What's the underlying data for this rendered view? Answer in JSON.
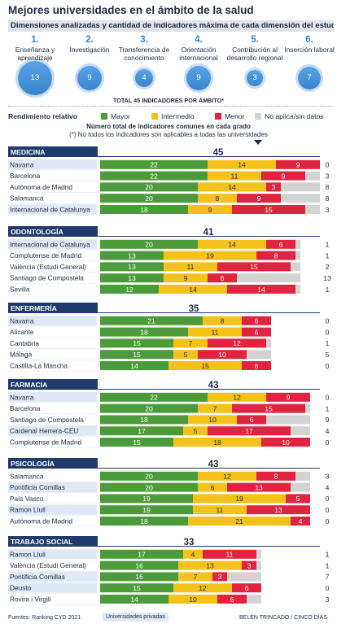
{
  "title": "Mejores universidades en el ámbito de la salud",
  "subtitle": "Dimensiones analizadas y cantidad de indicadores máxima de cada dimensión del estudio",
  "dimensions": [
    {
      "num": "1.",
      "label": "Enseñanza y aprendizaje",
      "count": "13"
    },
    {
      "num": "2.",
      "label": "Investigación",
      "count": "9"
    },
    {
      "num": "3.",
      "label": "Transferencia de conocimiento",
      "count": "4"
    },
    {
      "num": "4.",
      "label": "Orientación internacional",
      "count": "9"
    },
    {
      "num": "5.",
      "label": "Contribución al desarrollo regional",
      "count": "3"
    },
    {
      "num": "6.",
      "label": "Inserción laboral",
      "count": "7"
    }
  ],
  "total_label": "TOTAL 45 INDICADORES POR ÁMBITO*",
  "legend": {
    "title": "Rendimiento relativo",
    "items": [
      {
        "label": "Mayor",
        "color": "#4c9b3a"
      },
      {
        "label": "Intermedio",
        "color": "#f5c21b"
      },
      {
        "label": "Menor",
        "color": "#e0233f"
      },
      {
        "label": "No aplica/sin datos",
        "color": "#d3d3d3"
      }
    ]
  },
  "note_common": "Número total de indicadores comunes en cada grado",
  "note_asterisk": "(*) No todos los indicadores son aplicables a todas las universidades",
  "colors": {
    "mayor": "#4c9b3a",
    "intermedio": "#f5c21b",
    "menor": "#e0233f",
    "na": "#d3d3d3",
    "header": "#1f3b6b",
    "private_row": "#dfe9f5"
  },
  "chart_data": {
    "type": "bar",
    "stacked": true,
    "orientation": "horizontal",
    "series_names": [
      "Mayor",
      "Intermedio",
      "Menor",
      "No aplica/sin datos"
    ],
    "groups": [
      {
        "name": "MEDICINA",
        "total": 45,
        "rows": [
          {
            "university": "Navarra",
            "private": true,
            "values": [
              22,
              14,
              9,
              0
            ]
          },
          {
            "university": "Barcelona",
            "private": false,
            "values": [
              22,
              11,
              9,
              3
            ]
          },
          {
            "university": "Autónoma de Madrid",
            "private": false,
            "values": [
              20,
              14,
              3,
              8
            ]
          },
          {
            "university": "Salamanca",
            "private": false,
            "values": [
              20,
              8,
              9,
              8
            ]
          },
          {
            "university": "Internacional de Catalunya",
            "private": true,
            "values": [
              18,
              9,
              15,
              3
            ]
          }
        ]
      },
      {
        "name": "ODONTOLOGÍA",
        "total": 41,
        "rows": [
          {
            "university": "Internacional de Catalunya",
            "private": true,
            "values": [
              20,
              14,
              6,
              1
            ]
          },
          {
            "university": "Complutense de Madrid",
            "private": false,
            "values": [
              13,
              19,
              8,
              1
            ]
          },
          {
            "university": "València (Estudi General)",
            "private": false,
            "values": [
              13,
              11,
              15,
              2
            ]
          },
          {
            "university": "Santiago de Compostela",
            "private": false,
            "values": [
              13,
              9,
              6,
              13
            ]
          },
          {
            "university": "Sevilla",
            "private": false,
            "values": [
              12,
              14,
              14,
              1
            ]
          }
        ]
      },
      {
        "name": "ENFERMERÍA",
        "total": 35,
        "rows": [
          {
            "university": "Navarra",
            "private": true,
            "values": [
              21,
              8,
              6,
              0
            ]
          },
          {
            "university": "Alicante",
            "private": false,
            "values": [
              18,
              11,
              6,
              0
            ]
          },
          {
            "university": "Cantabria",
            "private": false,
            "values": [
              15,
              7,
              12,
              1
            ]
          },
          {
            "university": "Málaga",
            "private": false,
            "values": [
              15,
              5,
              10,
              5
            ]
          },
          {
            "university": "Castilla-La Mancha",
            "private": false,
            "values": [
              14,
              15,
              6,
              0
            ]
          }
        ]
      },
      {
        "name": "FARMACIA",
        "total": 43,
        "rows": [
          {
            "university": "Navarra",
            "private": true,
            "values": [
              22,
              12,
              9,
              0
            ]
          },
          {
            "university": "Barcelona",
            "private": false,
            "values": [
              20,
              7,
              15,
              1
            ]
          },
          {
            "university": "Santiago de Compostela",
            "private": false,
            "values": [
              18,
              10,
              6,
              9
            ]
          },
          {
            "university": "Cardenal Herrera-CEU",
            "private": true,
            "values": [
              17,
              5,
              17,
              4
            ]
          },
          {
            "university": "Complutense de Madrid",
            "private": false,
            "values": [
              15,
              18,
              10,
              0
            ]
          }
        ]
      },
      {
        "name": "PSICOLOGÍA",
        "total": 43,
        "rows": [
          {
            "university": "Salamanca",
            "private": false,
            "values": [
              20,
              12,
              8,
              3
            ]
          },
          {
            "university": "Pontificia Comillas",
            "private": true,
            "values": [
              20,
              6,
              13,
              4
            ]
          },
          {
            "university": "País Vasco",
            "private": false,
            "values": [
              19,
              19,
              5,
              0
            ]
          },
          {
            "university": "Ramon Llull",
            "private": true,
            "values": [
              19,
              11,
              13,
              0
            ]
          },
          {
            "university": "Autónoma de Madrid",
            "private": false,
            "values": [
              18,
              21,
              4,
              0
            ]
          }
        ]
      },
      {
        "name": "TRABAJO SOCIAL",
        "total": 33,
        "rows": [
          {
            "university": "Ramon Llull",
            "private": true,
            "values": [
              17,
              4,
              11,
              1
            ]
          },
          {
            "university": "València (Estudi General)",
            "private": false,
            "values": [
              16,
              13,
              3,
              1
            ]
          },
          {
            "university": "Pontificia Comillas",
            "private": true,
            "values": [
              16,
              7,
              3,
              7
            ]
          },
          {
            "university": "Deusto",
            "private": true,
            "values": [
              15,
              12,
              6,
              0
            ]
          },
          {
            "university": "Rovira i Virgili",
            "private": false,
            "values": [
              14,
              10,
              6,
              3
            ]
          }
        ]
      }
    ]
  },
  "footer": {
    "source": "Fuentes: Ranking CYD 2021",
    "private_label": "Universidades privadas",
    "credit": "BELÉN TRINCADO / CINCO DÍAS"
  }
}
